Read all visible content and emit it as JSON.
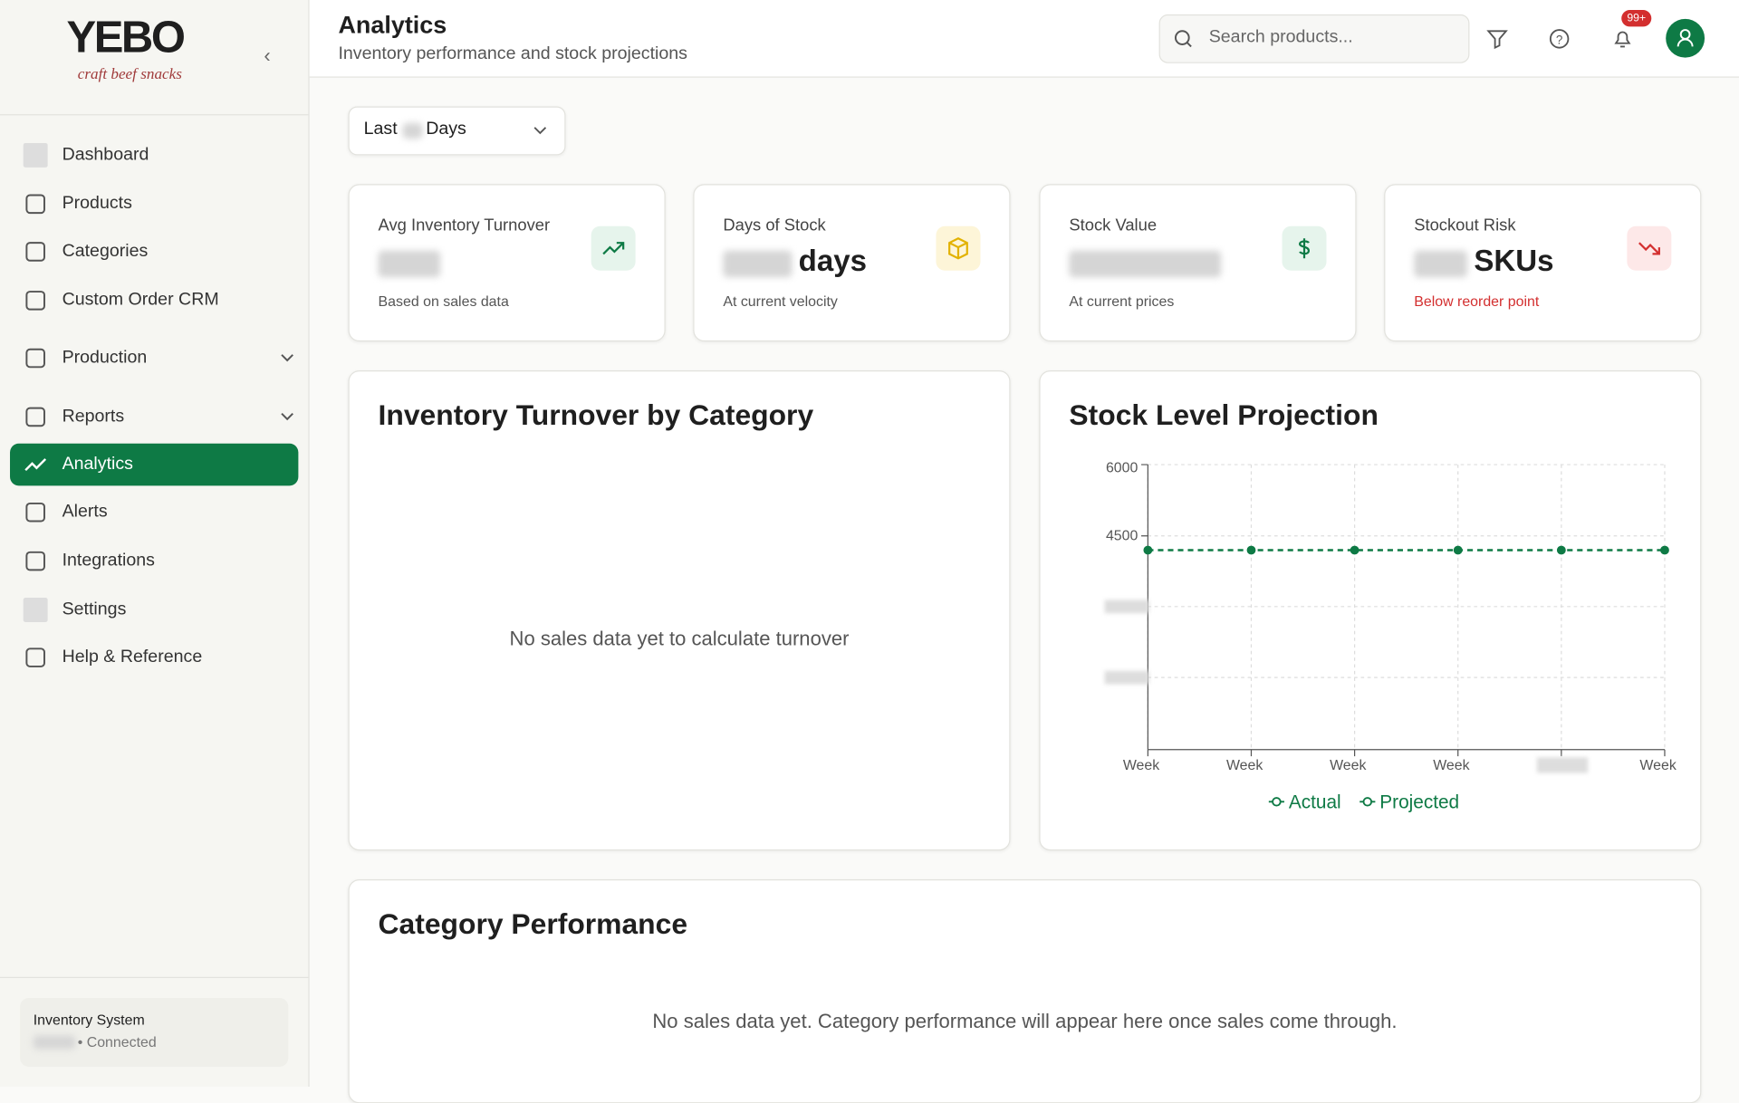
{
  "sidebar": {
    "brand": "YEBO",
    "tagline": "craft beef snacks",
    "nav": [
      "Dashboard",
      "Products",
      "Categories",
      "Custom Order CRM",
      "Production",
      "Reports",
      "Analytics",
      "Alerts",
      "Integrations",
      "Settings",
      "Help & Reference"
    ],
    "footer": {
      "title": "Inventory System",
      "status": "• Connected"
    }
  },
  "header": {
    "title": "Analytics",
    "subtitle": "Inventory performance and stock projections",
    "search_placeholder": "Search products...",
    "notifications": "99+"
  },
  "filter": {
    "prefix": "Last",
    "suffix": "Days"
  },
  "kpis": [
    {
      "label": "Avg Inventory Turnover",
      "note": "Based on sales data"
    },
    {
      "label": "Days of Stock",
      "unit": "days",
      "note": "At current velocity"
    },
    {
      "label": "Stock Value",
      "note": "At current prices"
    },
    {
      "label": "Stockout Risk",
      "unit": "SKUs",
      "note": "Below reorder point"
    }
  ],
  "turnover_card": {
    "title": "Inventory Turnover by Category",
    "empty": "No sales data yet to calculate turnover"
  },
  "chart_data": {
    "type": "line",
    "title": "Stock Level Projection",
    "categories": [
      "Week",
      "Week",
      "Week",
      "Week",
      null,
      "Week"
    ],
    "series": [
      {
        "name": "Actual",
        "color": "#0e7a45",
        "values": [
          null,
          null,
          null,
          null,
          null,
          null
        ]
      },
      {
        "name": "Projected",
        "color": "#0e7a45",
        "dashed": true,
        "values": [
          4200,
          4200,
          4200,
          4200,
          4200,
          4200
        ]
      }
    ],
    "ylim": [
      0,
      6000
    ],
    "yticks": [
      6000,
      4500
    ],
    "grid": true
  },
  "category_performance": {
    "title": "Category Performance",
    "empty": "No sales data yet. Category performance will appear here once sales come through."
  }
}
